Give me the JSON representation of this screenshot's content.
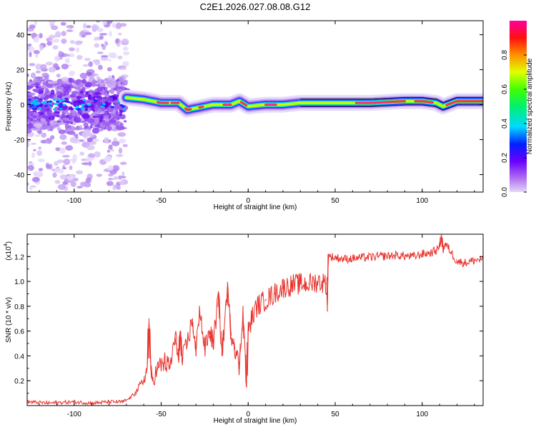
{
  "chart_data": [
    {
      "type": "heatmap",
      "title": "C2E1.2026.027.08.08.G12",
      "xlabel": "Height of straight line (km)",
      "ylabel": "Frequency (Hz)",
      "xlim": [
        -127,
        135
      ],
      "ylim": [
        -50,
        48
      ],
      "x_ticks": [
        -100,
        -50,
        0,
        50,
        100
      ],
      "x_tick_labels": [
        "-100",
        "-50",
        "0",
        "50",
        "100"
      ],
      "y_ticks": [
        -40,
        -20,
        0,
        20,
        40
      ],
      "y_tick_labels": [
        "-40",
        "-20",
        "0",
        "20",
        "40"
      ],
      "noise_region_x": [
        -127,
        -70
      ],
      "ridge": {
        "x": [
          -70,
          -60,
          -50,
          -40,
          -35,
          -30,
          -20,
          -10,
          -5,
          0,
          10,
          20,
          30,
          50,
          70,
          90,
          100,
          108,
          112,
          120,
          135
        ],
        "freq": [
          4,
          3,
          1,
          1,
          -3,
          -2,
          0,
          0,
          2,
          -1,
          0,
          0,
          1,
          1,
          1,
          2,
          2,
          1,
          -1,
          2,
          2
        ]
      },
      "colorbar": {
        "label": "Normalized spectral amplitude",
        "range": [
          0,
          1
        ],
        "ticks": [
          0.0,
          0.2,
          0.4,
          0.6,
          0.8
        ],
        "tick_labels": [
          "0.0",
          "0.2",
          "0.4",
          "0.6",
          "0.8"
        ]
      }
    },
    {
      "type": "line",
      "xlabel": "Height of straight line (km)",
      "ylabel": "SNR (10 * v/v)",
      "y_scale_label": "(x10",
      "y_scale_exponent": "4",
      "y_scale_suffix": ")",
      "xlim": [
        -127,
        135
      ],
      "ylim": [
        0,
        1.38
      ],
      "x_ticks": [
        -100,
        -50,
        0,
        50,
        100
      ],
      "x_tick_labels": [
        "-100",
        "-50",
        "0",
        "50",
        "100"
      ],
      "y_ticks": [
        0.2,
        0.4,
        0.6,
        0.8,
        1.0,
        1.2
      ],
      "y_tick_labels": [
        "0.2",
        "0.4",
        "0.6",
        "0.8",
        "1.0",
        "1.2"
      ],
      "series": [
        {
          "name": "SNR",
          "color": "#e8302a",
          "x": [
            -127,
            -115,
            -100,
            -90,
            -80,
            -72,
            -68,
            -65,
            -60,
            -58,
            -57,
            -56,
            -55,
            -52,
            -48,
            -45,
            -42,
            -40,
            -39,
            -38,
            -35,
            -32,
            -30,
            -28,
            -25,
            -22,
            -20,
            -17,
            -15,
            -12,
            -10,
            -8,
            -5,
            -3,
            -1,
            0,
            2,
            5,
            10,
            15,
            20,
            25,
            30,
            35,
            40,
            45,
            45.5,
            46,
            47,
            55,
            65,
            75,
            85,
            95,
            100,
            105,
            108,
            110,
            111,
            112,
            113,
            115,
            120,
            125,
            130,
            135
          ],
          "y": [
            0.03,
            0.02,
            0.03,
            0.02,
            0.03,
            0.03,
            0.06,
            0.1,
            0.2,
            0.3,
            0.7,
            0.3,
            0.2,
            0.3,
            0.35,
            0.3,
            0.55,
            0.4,
            0.6,
            0.35,
            0.5,
            0.7,
            0.4,
            0.8,
            0.45,
            0.6,
            0.5,
            0.9,
            0.4,
            0.95,
            0.6,
            0.5,
            0.3,
            0.8,
            0.15,
            0.6,
            0.7,
            0.8,
            0.85,
            0.9,
            0.95,
            0.97,
            0.98,
            0.98,
            1.0,
            0.98,
            0.76,
            1.22,
            1.2,
            1.18,
            1.19,
            1.2,
            1.21,
            1.2,
            1.22,
            1.23,
            1.25,
            1.28,
            1.38,
            1.25,
            1.3,
            1.27,
            1.16,
            1.15,
            1.17,
            1.18
          ]
        }
      ]
    }
  ]
}
